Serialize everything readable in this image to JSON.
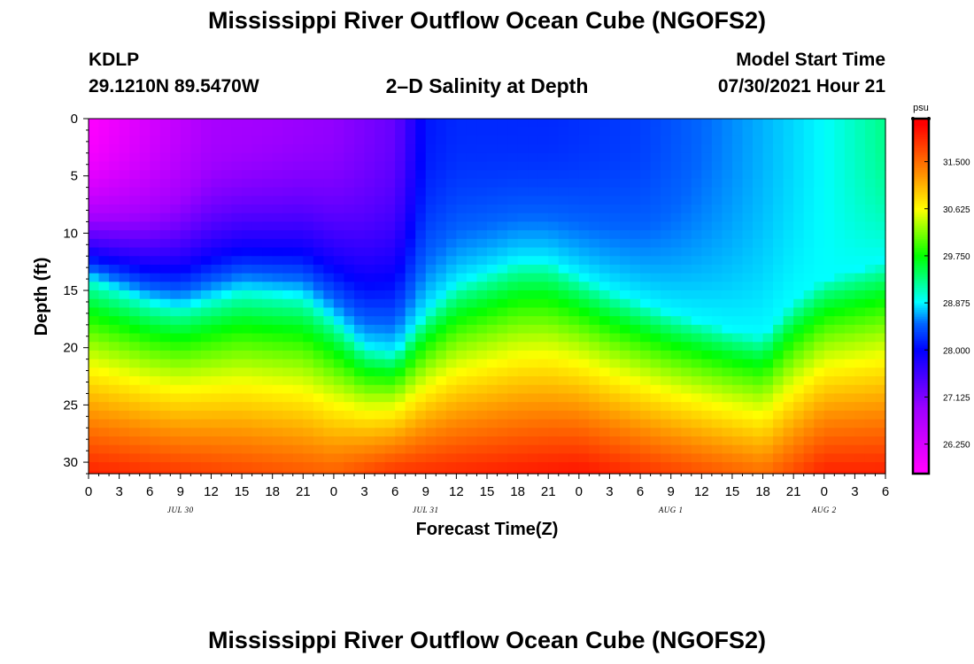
{
  "header": {
    "title": "Mississippi River Outflow Ocean Cube (NGOFS2)",
    "station": "KDLP",
    "coords": "29.1210N  89.5470W",
    "subtitle": "2–D Salinity at Depth",
    "model_label": "Model Start Time",
    "model_date": "07/30/2021 Hour 21"
  },
  "footer": {
    "title": "Mississippi River Outflow Ocean Cube (NGOFS2)"
  },
  "chart_data": {
    "type": "heatmap",
    "title": "2–D Salinity at Depth",
    "xlabel": "Forecast Time(Z)",
    "ylabel": "Depth (ft)",
    "x_tick_labels": [
      "0",
      "3",
      "6",
      "9",
      "12",
      "15",
      "18",
      "21",
      "0",
      "3",
      "6",
      "9",
      "12",
      "15",
      "18",
      "21",
      "0",
      "3",
      "6",
      "9",
      "12",
      "15",
      "18",
      "21",
      "0",
      "3",
      "6"
    ],
    "x_hours_range": [
      0,
      78
    ],
    "date_labels": [
      {
        "label": "JUL 30",
        "hour": 9
      },
      {
        "label": "JUL 31",
        "hour": 33
      },
      {
        "label": "AUG 1",
        "hour": 57
      },
      {
        "label": "AUG 2",
        "hour": 72
      }
    ],
    "y_ticks": [
      0,
      5,
      10,
      15,
      20,
      25,
      30
    ],
    "ylim": [
      0,
      31
    ],
    "y_inverted": true,
    "colorbar": {
      "unit": "psu",
      "range": [
        25.7,
        32.3
      ],
      "tick_values": [
        26.25,
        27.125,
        28.0,
        28.875,
        29.75,
        30.625,
        31.5
      ],
      "tick_labels": [
        "26.250",
        "27.125",
        "28.000",
        "28.875",
        "29.750",
        "30.625",
        "31.500"
      ],
      "colors": [
        "#ff00ff",
        "#a000ff",
        "#0000ff",
        "#0066ff",
        "#00ffff",
        "#00ff00",
        "#ffff00",
        "#ff8c00",
        "#ff0000"
      ],
      "color_stops": [
        25.8,
        26.9,
        28.0,
        28.5,
        28.9,
        29.75,
        30.625,
        31.3,
        32.2
      ]
    },
    "halocline_depth_ft": [
      {
        "hour": 0,
        "depth": 14.0
      },
      {
        "hour": 6,
        "depth": 16.0
      },
      {
        "hour": 9,
        "depth": 16.5
      },
      {
        "hour": 15,
        "depth": 15.0
      },
      {
        "hour": 21,
        "depth": 15.5
      },
      {
        "hour": 24,
        "depth": 17.5
      },
      {
        "hour": 27,
        "depth": 20.0
      },
      {
        "hour": 30,
        "depth": 20.5
      },
      {
        "hour": 33,
        "depth": 17.0
      },
      {
        "hour": 36,
        "depth": 14.5
      },
      {
        "hour": 42,
        "depth": 12.5
      },
      {
        "hour": 45,
        "depth": 12.5
      },
      {
        "hour": 51,
        "depth": 15.0
      },
      {
        "hour": 57,
        "depth": 17.0
      },
      {
        "hour": 63,
        "depth": 18.5
      },
      {
        "hour": 66,
        "depth": 19.0
      },
      {
        "hour": 69,
        "depth": 16.0
      },
      {
        "hour": 72,
        "depth": 14.0
      },
      {
        "hour": 78,
        "depth": 12.5
      }
    ],
    "surface_salinity_psu": [
      {
        "hour": 0,
        "value": 25.8
      },
      {
        "hour": 6,
        "value": 26.3
      },
      {
        "hour": 12,
        "value": 26.8
      },
      {
        "hour": 18,
        "value": 26.9
      },
      {
        "hour": 24,
        "value": 27.0
      },
      {
        "hour": 30,
        "value": 27.3
      },
      {
        "hour": 33,
        "value": 28.1
      },
      {
        "hour": 36,
        "value": 28.2
      },
      {
        "hour": 45,
        "value": 28.2
      },
      {
        "hour": 54,
        "value": 28.3
      },
      {
        "hour": 60,
        "value": 28.5
      },
      {
        "hour": 66,
        "value": 28.7
      },
      {
        "hour": 72,
        "value": 28.9
      },
      {
        "hour": 78,
        "value": 29.3
      }
    ],
    "bottom_salinity_psu": [
      {
        "hour": 0,
        "value": 32.0
      },
      {
        "hour": 24,
        "value": 31.6
      },
      {
        "hour": 30,
        "value": 31.9
      },
      {
        "hour": 48,
        "value": 32.1
      },
      {
        "hour": 66,
        "value": 31.5
      },
      {
        "hour": 72,
        "value": 32.0
      },
      {
        "hour": 78,
        "value": 32.0
      }
    ]
  }
}
